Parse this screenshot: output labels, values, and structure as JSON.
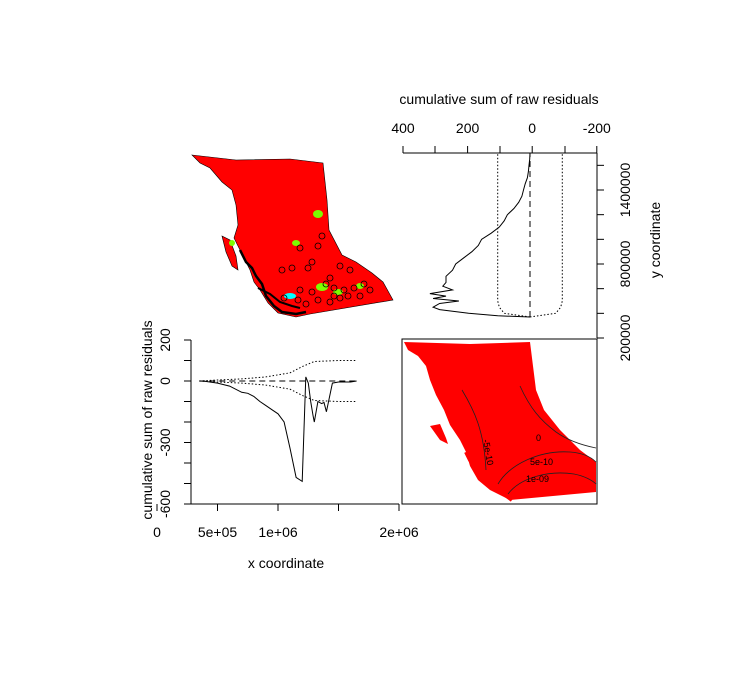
{
  "chart_data": [
    {
      "panel": "top-left",
      "type": "map",
      "description_visible": false,
      "fill_color": "#ff0000",
      "highlight_colors": [
        "#7cfc00",
        "#00ffff"
      ],
      "point_marker": "open-circle"
    },
    {
      "panel": "top-right",
      "type": "line",
      "orientation": "vertical",
      "title": "cumulative sum of raw residuals",
      "xlabel": "cumulative sum of raw residuals",
      "ylabel": "y coordinate",
      "x_ticks": [
        400,
        200,
        0,
        -200
      ],
      "x_tick_labels": [
        "400",
        "200",
        "0",
        "-200"
      ],
      "y_ticks": [
        200000,
        400000,
        600000,
        800000,
        1000000,
        1200000,
        1400000,
        1600000
      ],
      "y_tick_labels": [
        "200000",
        "800000",
        "1400000"
      ],
      "xlim": [
        400,
        -200
      ],
      "ylim": [
        200000,
        1700000
      ],
      "series": [
        {
          "style": "solid",
          "y": [
            370000,
            380000,
            400000,
            430000,
            450000,
            480000,
            500000,
            520000,
            540000,
            560000,
            590000,
            620000,
            650000,
            700000,
            750000,
            800000,
            850000,
            900000,
            950000,
            1000000,
            1050000,
            1100000,
            1150000,
            1200000,
            1250000,
            1300000,
            1350000,
            1400000,
            1450000,
            1500000,
            1550000,
            1600000,
            1650000,
            1700000
          ],
          "x": [
            0,
            100,
            190,
            280,
            300,
            280,
            220,
            300,
            260,
            310,
            240,
            270,
            260,
            260,
            240,
            230,
            205,
            180,
            160,
            150,
            120,
            95,
            80,
            70,
            50,
            35,
            25,
            20,
            15,
            8,
            5,
            3,
            1,
            0
          ]
        },
        {
          "style": "dotted",
          "y": [
            370000,
            400000,
            450000,
            500000,
            600000,
            700000,
            800000,
            900000,
            1000000,
            1100000,
            1200000,
            1300000,
            1400000,
            1500000,
            1600000,
            1700000
          ],
          "x": [
            0,
            80,
            95,
            100,
            100,
            100,
            100,
            100,
            100,
            100,
            100,
            100,
            100,
            100,
            100,
            100
          ]
        },
        {
          "style": "dotted",
          "y": [
            370000,
            400000,
            450000,
            500000,
            600000,
            700000,
            800000,
            900000,
            1000000,
            1100000,
            1200000,
            1300000,
            1400000,
            1500000,
            1600000,
            1700000
          ],
          "x": [
            0,
            -80,
            -95,
            -100,
            -100,
            -100,
            -100,
            -100,
            -100,
            -100,
            -100,
            -100,
            -100,
            -100,
            -100,
            -100
          ]
        },
        {
          "style": "dashed",
          "y": [
            370000,
            1700000
          ],
          "x": [
            0,
            0
          ]
        }
      ]
    },
    {
      "panel": "bottom-left",
      "type": "line",
      "xlabel": "x coordinate",
      "ylabel": "cumulative sum of raw residuals",
      "x_ticks": [
        0,
        500000,
        1000000,
        1500000,
        2000000
      ],
      "x_tick_labels": [
        "0",
        "5e+05",
        "1e+06",
        "2e+06"
      ],
      "y_ticks": [
        200,
        100,
        0,
        -100,
        -200,
        -300,
        -400,
        -500,
        -600
      ],
      "y_tick_labels": [
        "200",
        "0",
        "-300",
        "-600"
      ],
      "xlim": [
        0,
        2000000
      ],
      "ylim": [
        -600,
        200
      ],
      "series": [
        {
          "style": "solid",
          "x": [
            350000,
            400000,
            500000,
            600000,
            700000,
            750000,
            800000,
            850000,
            900000,
            950000,
            1000000,
            1050000,
            1100000,
            1150000,
            1200000,
            1230000,
            1250000,
            1270000,
            1290000,
            1300000,
            1330000,
            1360000,
            1380000,
            1400000,
            1450000,
            1500000,
            1600000,
            1650000
          ],
          "y": [
            0,
            -2,
            -10,
            -25,
            -55,
            -60,
            -75,
            -100,
            -120,
            -140,
            -160,
            -200,
            -330,
            -470,
            -490,
            20,
            -10,
            -100,
            -170,
            -200,
            -100,
            -110,
            -105,
            -150,
            -10,
            -5,
            -5,
            0
          ]
        },
        {
          "style": "dotted",
          "x": [
            350000,
            500000,
            700000,
            900000,
            1100000,
            1200000,
            1300000,
            1500000,
            1650000
          ],
          "y": [
            0,
            5,
            10,
            20,
            40,
            70,
            95,
            100,
            100
          ]
        },
        {
          "style": "dotted",
          "x": [
            350000,
            500000,
            700000,
            900000,
            1100000,
            1200000,
            1300000,
            1500000,
            1650000
          ],
          "y": [
            0,
            -5,
            -10,
            -20,
            -40,
            -70,
            -95,
            -100,
            -100
          ]
        },
        {
          "style": "dashed",
          "x": [
            350000,
            1650000
          ],
          "y": [
            0,
            0
          ]
        }
      ]
    },
    {
      "panel": "bottom-right",
      "type": "contour-map",
      "fill_color": "#ff0000",
      "contour_labels": [
        "-5e-10",
        "0",
        "5e-10",
        "1e-09"
      ]
    }
  ]
}
